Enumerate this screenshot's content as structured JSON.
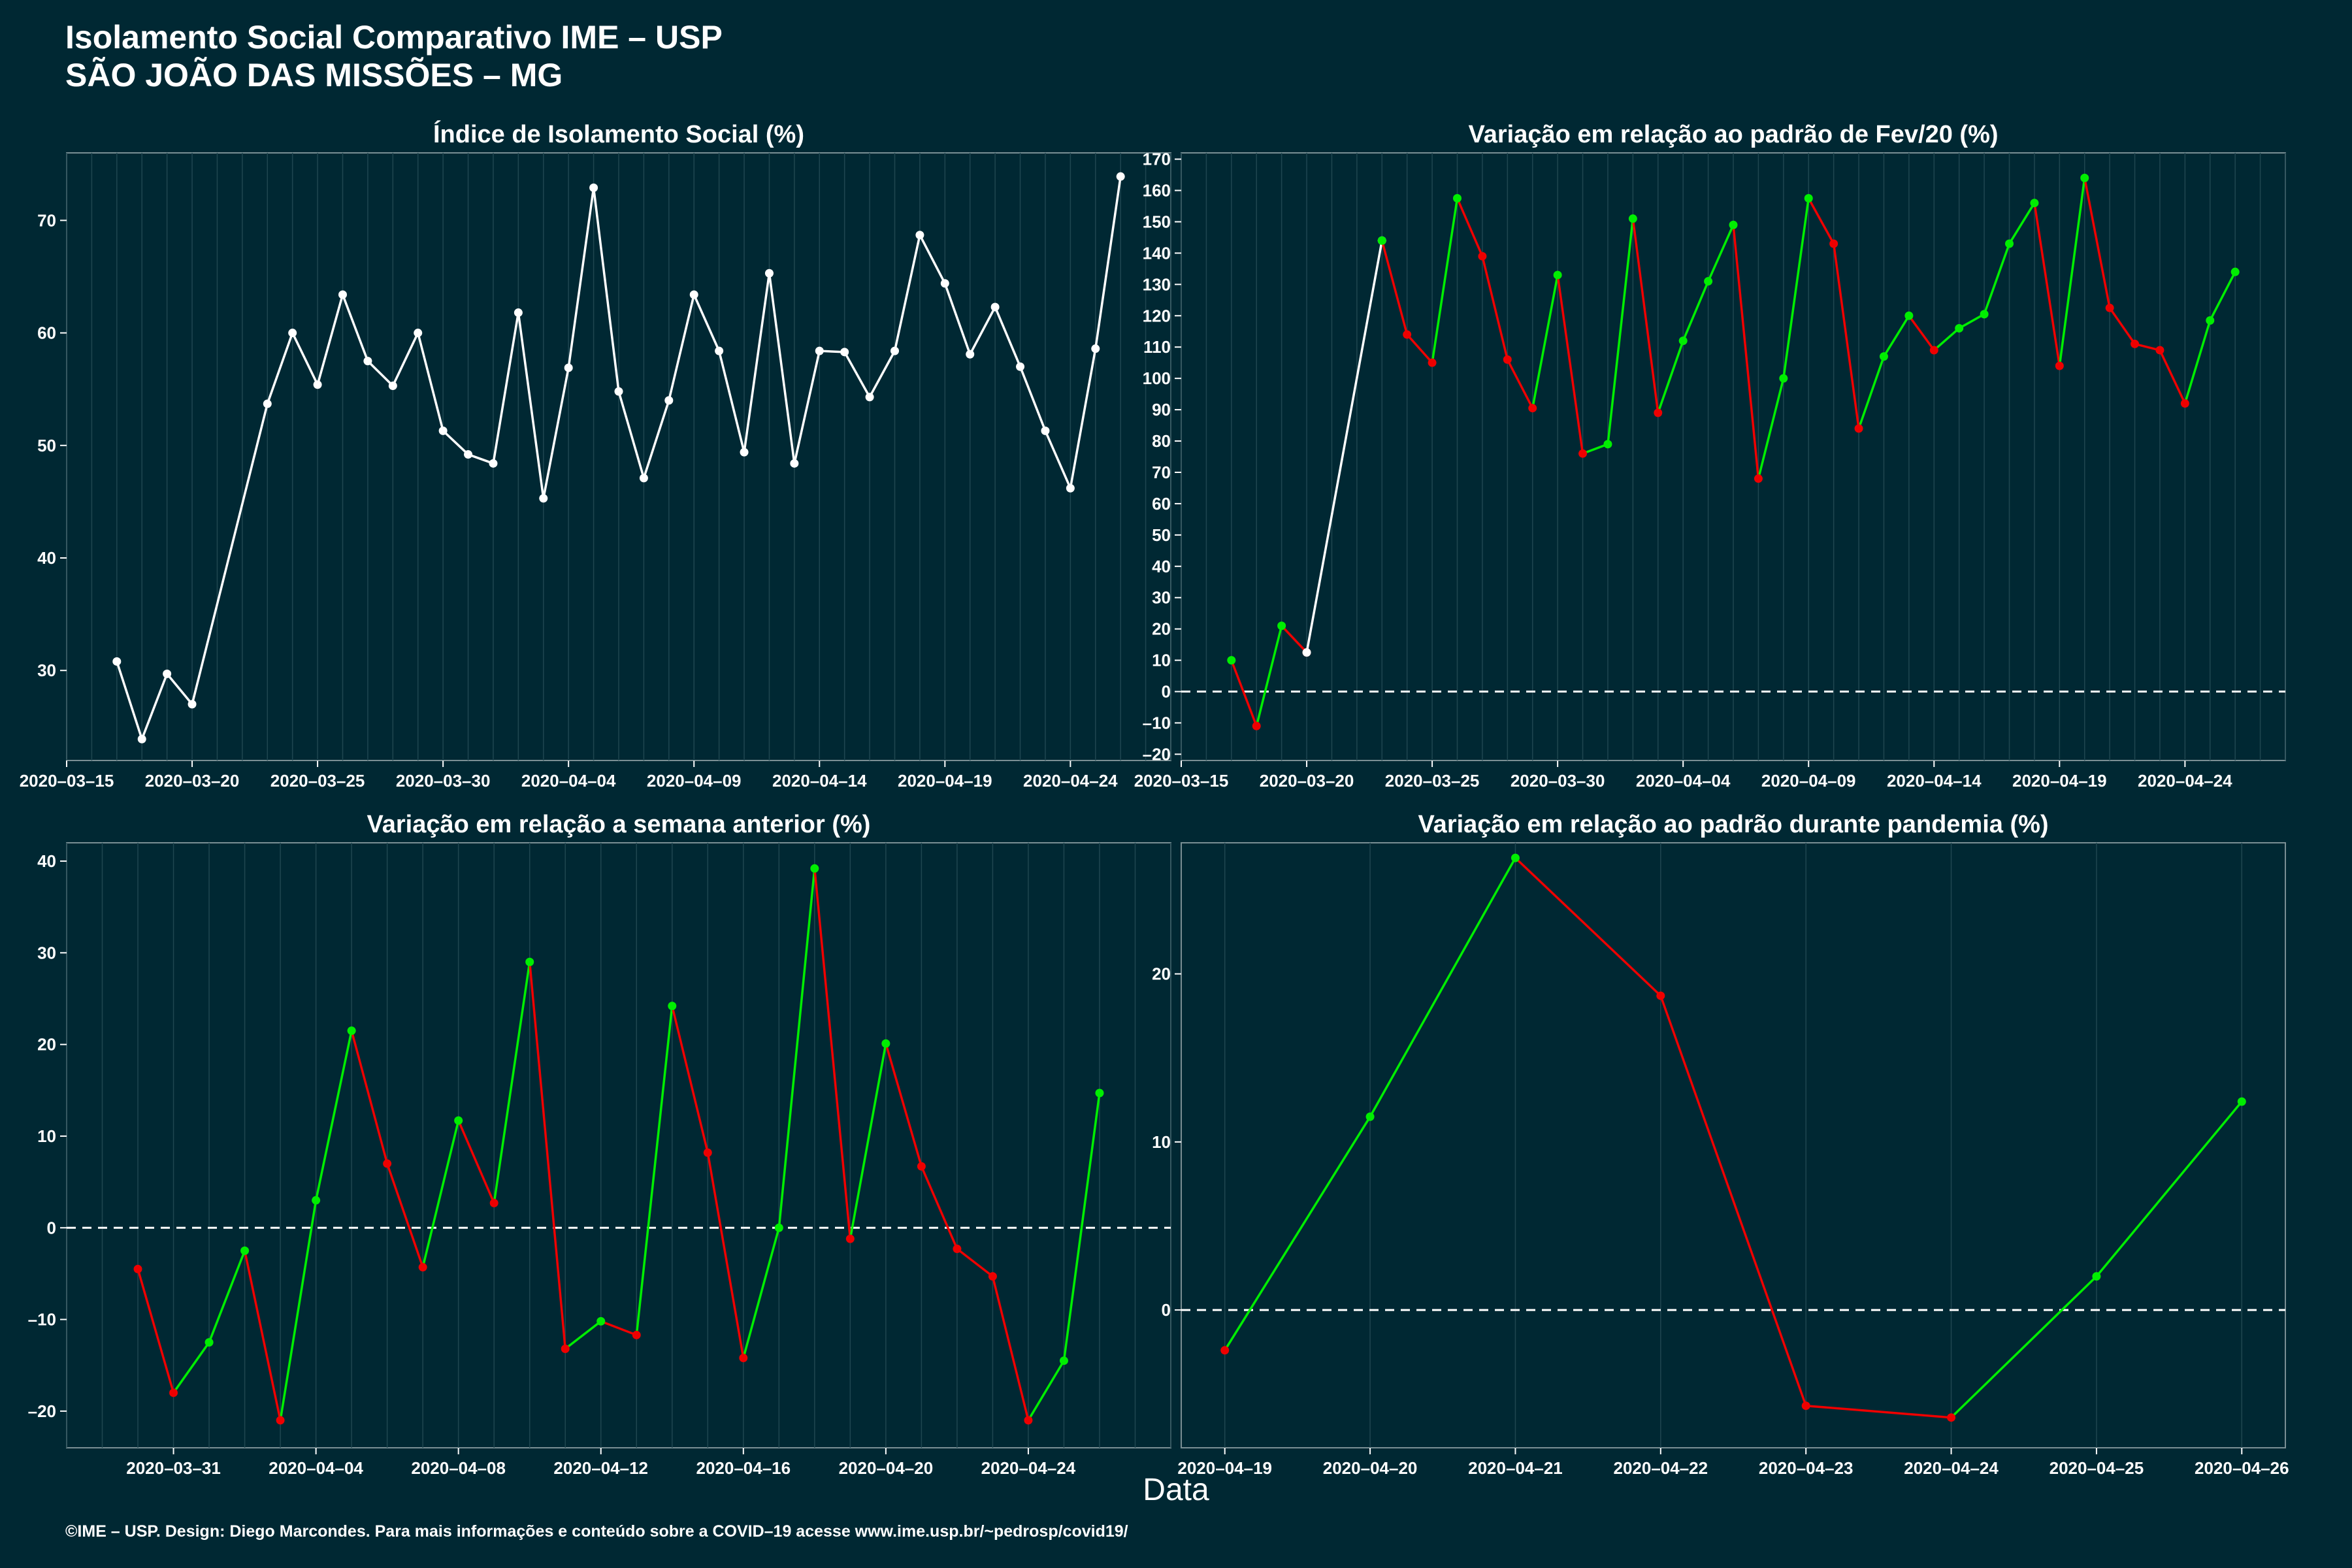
{
  "header": {
    "title_line1": "Isolamento Social Comparativo IME – USP",
    "title_line2": "SÃO JOÃO DAS MISSÕES – MG"
  },
  "x_axis_label": "Data",
  "footer": "©IME – USP. Design: Diego Marcondes. Para mais informações e conteúdo sobre a COVID–19 acesse www.ime.usp.br/~pedrosp/covid19/",
  "colors": {
    "background": "#002833",
    "panel": "#002833",
    "grid": "#1f4650",
    "white_line": "#ffffff",
    "positive": "#00ee00",
    "negative": "#ee0000"
  },
  "chart_data": [
    {
      "type": "line",
      "title": "Índice de Isolamento Social (%)",
      "x_start": "2020-03-15",
      "x_end": "2020-04-28",
      "xticks": [
        "2020–03–15",
        "2020–03–20",
        "2020–03–25",
        "2020–03–30",
        "2020–04–04",
        "2020–04–09",
        "2020–04–14",
        "2020–04–19",
        "2020–04–24"
      ],
      "ylim": [
        22,
        76
      ],
      "yticks": [
        30,
        40,
        50,
        60,
        70
      ],
      "series": [
        {
          "color": "#ffffff",
          "points": [
            [
              "2020-03-17",
              30.8
            ],
            [
              "2020-03-18",
              23.9
            ],
            [
              "2020-03-19",
              29.7
            ],
            [
              "2020-03-20",
              27.0
            ],
            [
              "2020-03-23",
              53.7
            ],
            [
              "2020-03-24",
              60.0
            ],
            [
              "2020-03-25",
              55.4
            ],
            [
              "2020-03-26",
              63.4
            ],
            [
              "2020-03-27",
              57.5
            ],
            [
              "2020-03-28",
              55.3
            ],
            [
              "2020-03-29",
              60.0
            ],
            [
              "2020-03-30",
              51.3
            ],
            [
              "2020-03-31",
              49.2
            ],
            [
              "2020-04-01",
              48.4
            ],
            [
              "2020-04-02",
              61.8
            ],
            [
              "2020-04-03",
              45.3
            ],
            [
              "2020-04-04",
              56.9
            ],
            [
              "2020-04-05",
              72.9
            ],
            [
              "2020-04-06",
              54.8
            ],
            [
              "2020-04-07",
              47.1
            ],
            [
              "2020-04-08",
              54.0
            ],
            [
              "2020-04-09",
              63.4
            ],
            [
              "2020-04-10",
              58.4
            ],
            [
              "2020-04-11",
              49.4
            ],
            [
              "2020-04-12",
              65.3
            ],
            [
              "2020-04-13",
              48.4
            ],
            [
              "2020-04-14",
              58.4
            ],
            [
              "2020-04-15",
              58.3
            ],
            [
              "2020-04-16",
              54.3
            ],
            [
              "2020-04-17",
              58.4
            ],
            [
              "2020-04-18",
              68.7
            ],
            [
              "2020-04-19",
              64.4
            ],
            [
              "2020-04-20",
              58.1
            ],
            [
              "2020-04-21",
              62.3
            ],
            [
              "2020-04-22",
              57.0
            ],
            [
              "2020-04-23",
              51.3
            ],
            [
              "2020-04-24",
              46.2
            ],
            [
              "2020-04-25",
              58.6
            ],
            [
              "2020-04-26",
              73.9
            ]
          ]
        }
      ],
      "zero_line": false
    },
    {
      "type": "line",
      "title": "Variação em relação ao padrão de Fev/20 (%)",
      "x_start": "2020-03-15",
      "x_end": "2020-04-28",
      "xticks": [
        "2020–03–15",
        "2020–03–20",
        "2020–03–25",
        "2020–03–30",
        "2020–04–04",
        "2020–04–09",
        "2020–04–14",
        "2020–04–19",
        "2020–04–24"
      ],
      "ylim": [
        -22,
        172
      ],
      "yticks": [
        -20,
        -10,
        0,
        10,
        20,
        30,
        40,
        50,
        60,
        70,
        80,
        90,
        100,
        110,
        120,
        130,
        140,
        150,
        160,
        170
      ],
      "series": [
        {
          "color": "signed",
          "points": [
            [
              "2020-03-17",
              10
            ],
            [
              "2020-03-18",
              -11
            ],
            [
              "2020-03-19",
              21
            ],
            [
              "2020-03-20",
              12.5
            ]
          ]
        },
        {
          "color": "#ffffff",
          "points": [
            [
              "2020-03-20",
              12.5
            ],
            [
              "2020-03-23",
              144
            ]
          ]
        },
        {
          "color": "signed",
          "points": [
            [
              "2020-03-23",
              144
            ],
            [
              "2020-03-24",
              114
            ],
            [
              "2020-03-25",
              105
            ],
            [
              "2020-03-26",
              157.5
            ],
            [
              "2020-03-27",
              139
            ],
            [
              "2020-03-28",
              106
            ],
            [
              "2020-03-29",
              90.5
            ],
            [
              "2020-03-30",
              133
            ],
            [
              "2020-03-31",
              76
            ],
            [
              "2020-04-01",
              79
            ],
            [
              "2020-04-02",
              151
            ],
            [
              "2020-04-03",
              89
            ],
            [
              "2020-04-04",
              112
            ],
            [
              "2020-04-05",
              131
            ],
            [
              "2020-04-06",
              149
            ],
            [
              "2020-04-07",
              68
            ],
            [
              "2020-04-08",
              100
            ],
            [
              "2020-04-09",
              157.5
            ],
            [
              "2020-04-10",
              143
            ],
            [
              "2020-04-11",
              84
            ],
            [
              "2020-04-12",
              107
            ],
            [
              "2020-04-13",
              120
            ],
            [
              "2020-04-14",
              109
            ],
            [
              "2020-04-15",
              116
            ],
            [
              "2020-04-16",
              120.5
            ],
            [
              "2020-04-17",
              143
            ],
            [
              "2020-04-18",
              156
            ],
            [
              "2020-04-19",
              104
            ],
            [
              "2020-04-20",
              164
            ],
            [
              "2020-04-21",
              122.5
            ],
            [
              "2020-04-22",
              111
            ],
            [
              "2020-04-23",
              109
            ],
            [
              "2020-04-24",
              92
            ],
            [
              "2020-04-25",
              118.5
            ],
            [
              "2020-04-26",
              134
            ]
          ]
        }
      ],
      "zero_line": true
    },
    {
      "type": "line",
      "title": "Variação em relação a semana anterior (%)",
      "x_start": "2020-03-28",
      "x_end": "2020-04-28",
      "xticks": [
        "2020–03–31",
        "2020–04–04",
        "2020–04–08",
        "2020–04–12",
        "2020–04–16",
        "2020–04–20",
        "2020–04–24"
      ],
      "ylim": [
        -24,
        42
      ],
      "yticks": [
        -20,
        -10,
        0,
        10,
        20,
        30,
        40
      ],
      "series": [
        {
          "color": "signed",
          "points": [
            [
              "2020-03-30",
              -4.5
            ],
            [
              "2020-03-31",
              -18
            ],
            [
              "2020-04-01",
              -12.5
            ],
            [
              "2020-04-02",
              -2.5
            ],
            [
              "2020-04-03",
              -21
            ],
            [
              "2020-04-04",
              3
            ],
            [
              "2020-04-05",
              21.5
            ],
            [
              "2020-04-06",
              7
            ],
            [
              "2020-04-07",
              -4.3
            ],
            [
              "2020-04-08",
              11.7
            ],
            [
              "2020-04-09",
              2.7
            ],
            [
              "2020-04-10",
              29
            ],
            [
              "2020-04-11",
              -13.2
            ],
            [
              "2020-04-12",
              -10.2
            ],
            [
              "2020-04-13",
              -11.7
            ],
            [
              "2020-04-14",
              24.2
            ],
            [
              "2020-04-15",
              8.2
            ],
            [
              "2020-04-16",
              -14.2
            ],
            [
              "2020-04-17",
              0
            ],
            [
              "2020-04-18",
              39.2
            ],
            [
              "2020-04-19",
              -1.2
            ],
            [
              "2020-04-20",
              20.1
            ],
            [
              "2020-04-21",
              6.7
            ],
            [
              "2020-04-22",
              -2.3
            ],
            [
              "2020-04-23",
              -5.3
            ],
            [
              "2020-04-24",
              -21
            ],
            [
              "2020-04-25",
              -14.5
            ],
            [
              "2020-04-26",
              14.7
            ]
          ]
        }
      ],
      "zero_line": true
    },
    {
      "type": "line",
      "title": "Variação em relação ao padrão durante pandemia (%)",
      "x_start": "2020-04-18.7",
      "x_end": "2020-04-26.3",
      "xticks": [
        "2020–04–19",
        "2020–04–20",
        "2020–04–21",
        "2020–04–22",
        "2020–04–23",
        "2020–04–24",
        "2020–04–25",
        "2020–04–26"
      ],
      "ylim": [
        -8.2,
        27.8
      ],
      "yticks": [
        0,
        10,
        20
      ],
      "series": [
        {
          "color": "signed",
          "points": [
            [
              "2020-04-19",
              -2.4
            ],
            [
              "2020-04-20",
              11.5
            ],
            [
              "2020-04-21",
              26.9
            ],
            [
              "2020-04-22",
              18.7
            ],
            [
              "2020-04-23",
              -5.7
            ],
            [
              "2020-04-24",
              -6.4
            ],
            [
              "2020-04-25",
              2.0
            ],
            [
              "2020-04-26",
              12.4
            ]
          ]
        }
      ],
      "zero_line": true
    }
  ]
}
